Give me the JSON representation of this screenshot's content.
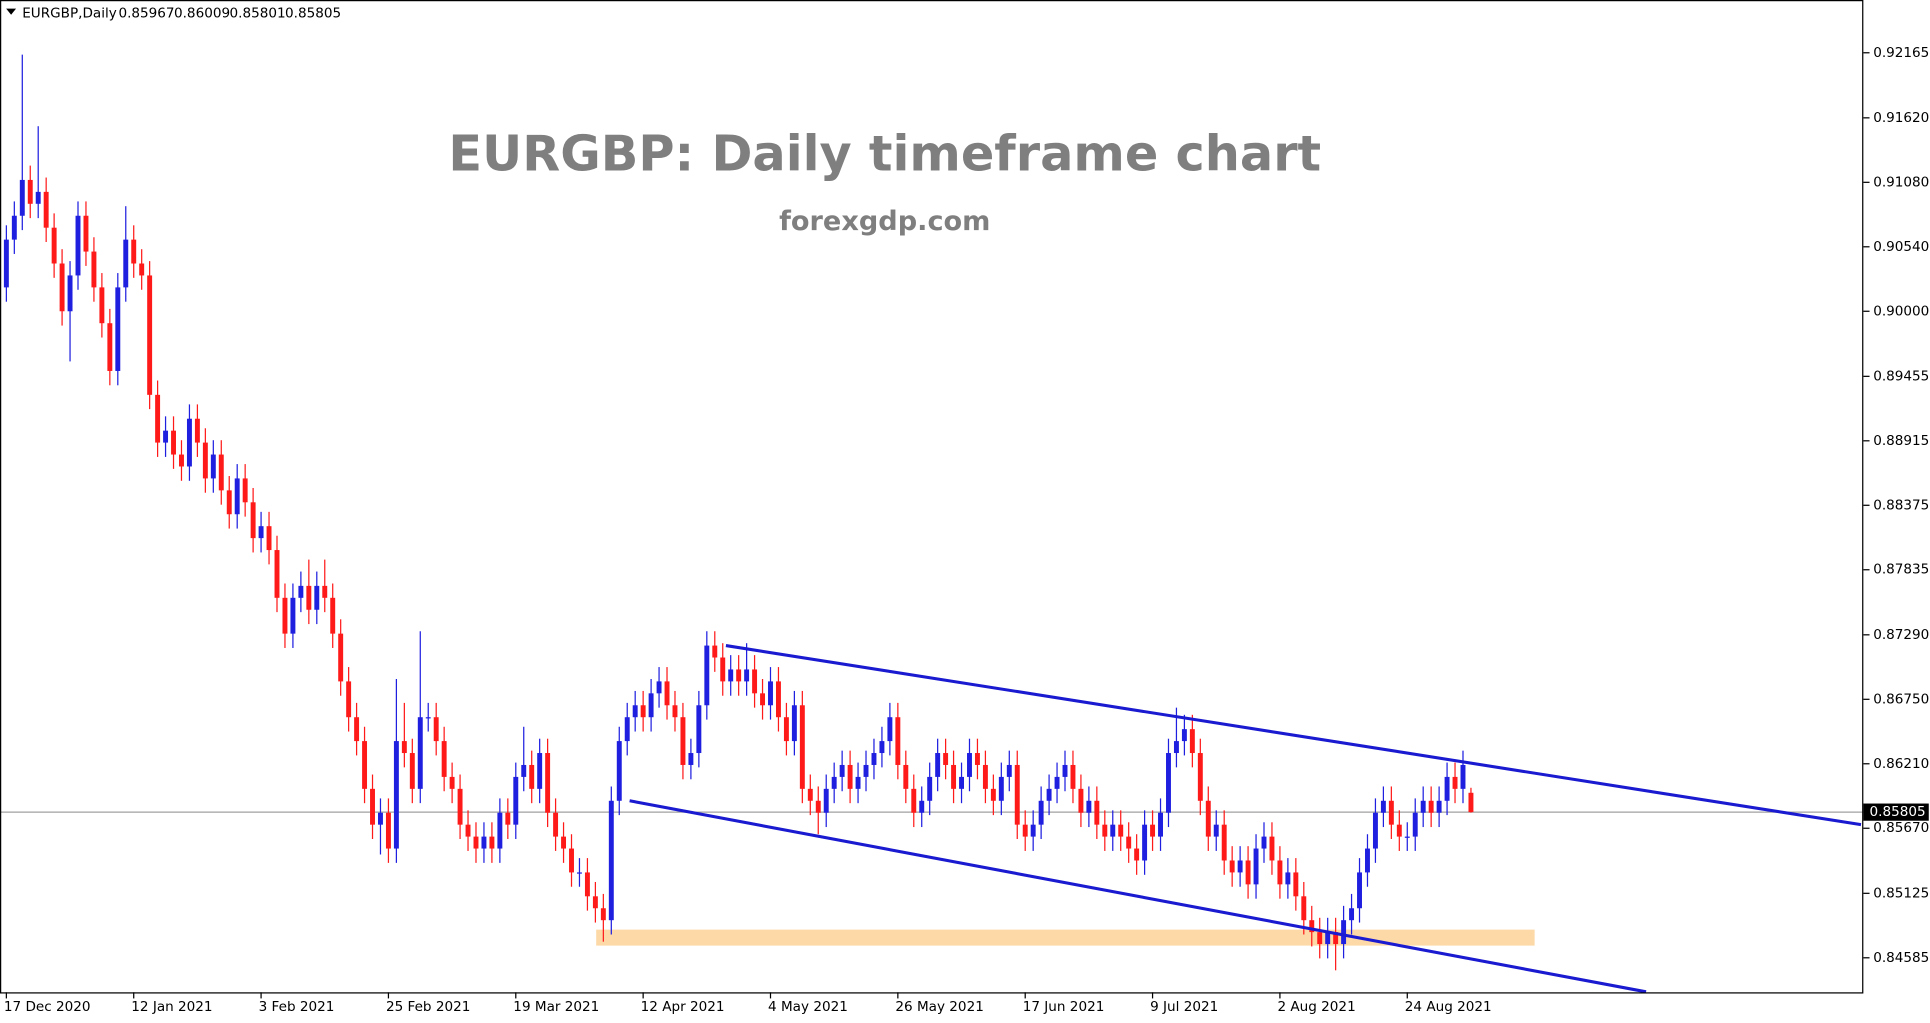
{
  "chart_data": {
    "type": "candlestick",
    "title": "EURGBP: Daily timeframe chart",
    "subtitle": "forexgdp.com",
    "symbol": "EURGBP,Daily",
    "up_color": "#1f1fe0",
    "down_color": "#ff1a1a",
    "xlim": [
      -0.8,
      233.3
    ],
    "xticks": [
      {
        "value": 0,
        "label": "17 Dec 2020"
      },
      {
        "value": 16,
        "label": "12 Jan 2021"
      },
      {
        "value": 32,
        "label": "3 Feb 2021"
      },
      {
        "value": 48,
        "label": "25 Feb 2021"
      },
      {
        "value": 64,
        "label": "19 Mar 2021"
      },
      {
        "value": 80,
        "label": "12 Apr 2021"
      },
      {
        "value": 96,
        "label": "4 May 2021"
      },
      {
        "value": 112,
        "label": "26 May 2021"
      },
      {
        "value": 128,
        "label": "17 Jun 2021"
      },
      {
        "value": 144,
        "label": "9 Jul 2021"
      },
      {
        "value": 160,
        "label": "2 Aug 2021"
      },
      {
        "value": 176,
        "label": "24 Aug 2021"
      }
    ],
    "ylim": [
      0.84296,
      0.92607
    ],
    "yticks": [
      0.92165,
      {
        "value": 0.9162,
        "label": "0.91620"
      },
      {
        "value": 0.9108,
        "label": "0.91080"
      },
      {
        "value": 0.9054,
        "label": "0.90540"
      },
      {
        "value": 0.9,
        "label": "0.90000"
      },
      0.89455,
      0.88915,
      0.88375,
      0.87835,
      {
        "value": 0.8729,
        "label": "0.87290"
      },
      {
        "value": 0.8675,
        "label": "0.86750"
      },
      {
        "value": 0.8621,
        "label": "0.86210"
      },
      {
        "value": 0.8567,
        "label": "0.85670"
      },
      0.85125,
      0.84585
    ],
    "open": [
      0.902,
      0.906,
      0.908,
      0.911,
      0.909,
      0.91,
      0.907,
      0.904,
      0.9,
      0.903,
      0.908,
      0.905,
      0.902,
      0.899,
      0.895,
      0.902,
      0.906,
      0.904,
      0.903,
      0.893,
      0.889,
      0.89,
      0.888,
      0.887,
      0.891,
      0.889,
      0.886,
      0.888,
      0.885,
      0.883,
      0.886,
      0.884,
      0.881,
      0.882,
      0.88,
      0.876,
      0.873,
      0.876,
      0.877,
      0.875,
      0.877,
      0.876,
      0.873,
      0.869,
      0.866,
      0.864,
      0.86,
      0.857,
      0.858,
      0.855,
      0.864,
      0.863,
      0.86,
      0.866,
      0.866,
      0.864,
      0.861,
      0.86,
      0.857,
      0.856,
      0.855,
      0.856,
      0.855,
      0.858,
      0.857,
      0.861,
      0.862,
      0.86,
      0.863,
      0.858,
      0.856,
      0.855,
      0.853,
      0.853,
      0.851,
      0.85,
      0.849,
      0.859,
      0.864,
      0.866,
      0.867,
      0.866,
      0.868,
      0.869,
      0.867,
      0.866,
      0.862,
      0.863,
      0.867,
      0.872,
      0.871,
      0.869,
      0.87,
      0.869,
      0.87,
      0.868,
      0.867,
      0.869,
      0.866,
      0.864,
      0.867,
      0.86,
      0.859,
      0.858,
      0.86,
      0.861,
      0.862,
      0.86,
      0.861,
      0.862,
      0.863,
      0.864,
      0.866,
      0.862,
      0.86,
      0.858,
      0.859,
      0.861,
      0.863,
      0.862,
      0.86,
      0.861,
      0.863,
      0.862,
      0.86,
      0.859,
      0.861,
      0.862,
      0.857,
      0.856,
      0.857,
      0.859,
      0.86,
      0.861,
      0.862,
      0.86,
      0.858,
      0.859,
      0.857,
      0.856,
      0.857,
      0.856,
      0.855,
      0.854,
      0.857,
      0.856,
      0.858,
      0.863,
      0.864,
      0.865,
      0.863,
      0.859,
      0.856,
      0.857,
      0.854,
      0.853,
      0.854,
      0.852,
      0.855,
      0.856,
      0.854,
      0.852,
      0.853,
      0.851,
      0.849,
      0.848,
      0.847,
      0.848,
      0.847,
      0.849,
      0.85,
      0.853,
      0.855,
      0.858,
      0.859,
      0.857,
      0.856,
      0.856,
      0.858,
      0.859,
      0.858,
      0.859,
      0.861,
      0.86,
      0.85967
    ],
    "high": [
      0.9072,
      0.9092,
      0.9215,
      0.9122,
      0.9155,
      0.9112,
      0.9082,
      0.9052,
      0.9042,
      0.9092,
      0.9092,
      0.9062,
      0.9032,
      0.9002,
      0.9032,
      0.9088,
      0.9072,
      0.9052,
      0.9042,
      0.8942,
      0.8912,
      0.8912,
      0.8892,
      0.8922,
      0.8922,
      0.8902,
      0.8892,
      0.8892,
      0.8862,
      0.8872,
      0.8872,
      0.8852,
      0.8832,
      0.8832,
      0.8812,
      0.8772,
      0.8772,
      0.8782,
      0.8792,
      0.8782,
      0.8792,
      0.8772,
      0.8742,
      0.8702,
      0.8672,
      0.8652,
      0.8612,
      0.8592,
      0.8592,
      0.8692,
      0.8672,
      0.8642,
      0.8732,
      0.8672,
      0.8672,
      0.8652,
      0.8622,
      0.8612,
      0.8582,
      0.8572,
      0.8572,
      0.8572,
      0.8592,
      0.8592,
      0.8622,
      0.8652,
      0.8632,
      0.8642,
      0.8642,
      0.8592,
      0.8572,
      0.8562,
      0.8542,
      0.8542,
      0.8522,
      0.8512,
      0.8602,
      0.8652,
      0.8672,
      0.8682,
      0.8682,
      0.8692,
      0.8702,
      0.8702,
      0.8682,
      0.8672,
      0.8642,
      0.8682,
      0.8732,
      0.8732,
      0.8722,
      0.8712,
      0.8712,
      0.8722,
      0.8712,
      0.8692,
      0.8702,
      0.8702,
      0.8672,
      0.8682,
      0.8682,
      0.8612,
      0.8602,
      0.8612,
      0.8622,
      0.8632,
      0.8632,
      0.8622,
      0.8632,
      0.8642,
      0.8652,
      0.8672,
      0.8672,
      0.8632,
      0.8612,
      0.8602,
      0.8622,
      0.8642,
      0.8642,
      0.8632,
      0.8622,
      0.8642,
      0.8642,
      0.8632,
      0.8612,
      0.8622,
      0.8632,
      0.8632,
      0.8582,
      0.8582,
      0.8602,
      0.8612,
      0.8622,
      0.8632,
      0.8632,
      0.8612,
      0.8602,
      0.8602,
      0.8582,
      0.8582,
      0.8582,
      0.8572,
      0.8562,
      0.8582,
      0.8582,
      0.8592,
      0.8642,
      0.8668,
      0.8662,
      0.8662,
      0.8642,
      0.8602,
      0.8582,
      0.8582,
      0.8552,
      0.8552,
      0.8552,
      0.8562,
      0.8572,
      0.8572,
      0.8552,
      0.8542,
      0.8542,
      0.8522,
      0.8502,
      0.8492,
      0.8492,
      0.8492,
      0.8502,
      0.8512,
      0.8542,
      0.8562,
      0.8592,
      0.8602,
      0.8602,
      0.8582,
      0.8572,
      0.8592,
      0.8602,
      0.8602,
      0.8602,
      0.8622,
      0.8622,
      0.8632,
      0.86009
    ],
    "low": [
      0.9008,
      0.9048,
      0.9068,
      0.9078,
      0.9078,
      0.9058,
      0.9028,
      0.8988,
      0.8958,
      0.9018,
      0.9038,
      0.9008,
      0.8978,
      0.8938,
      0.8938,
      0.9008,
      0.9028,
      0.9018,
      0.8918,
      0.8878,
      0.8878,
      0.8868,
      0.8858,
      0.8858,
      0.8878,
      0.8848,
      0.8848,
      0.8838,
      0.8818,
      0.8818,
      0.8828,
      0.8798,
      0.8798,
      0.8788,
      0.8748,
      0.8718,
      0.8718,
      0.8748,
      0.8738,
      0.8738,
      0.8748,
      0.8718,
      0.8678,
      0.8648,
      0.8628,
      0.8588,
      0.8558,
      0.8545,
      0.8538,
      0.8538,
      0.8618,
      0.8588,
      0.8588,
      0.8648,
      0.8628,
      0.8598,
      0.8588,
      0.8558,
      0.8548,
      0.8538,
      0.8538,
      0.8538,
      0.8538,
      0.8558,
      0.8558,
      0.8598,
      0.8588,
      0.8588,
      0.8568,
      0.8548,
      0.8538,
      0.8518,
      0.8518,
      0.8498,
      0.8488,
      0.8472,
      0.8478,
      0.8578,
      0.8628,
      0.8648,
      0.8648,
      0.8648,
      0.8668,
      0.8658,
      0.8648,
      0.8608,
      0.8608,
      0.8618,
      0.8658,
      0.8698,
      0.8678,
      0.8678,
      0.8678,
      0.8678,
      0.8668,
      0.8658,
      0.8658,
      0.8648,
      0.8628,
      0.8628,
      0.8588,
      0.8578,
      0.8562,
      0.8568,
      0.8588,
      0.8598,
      0.8588,
      0.8588,
      0.8598,
      0.8608,
      0.8618,
      0.8628,
      0.8608,
      0.8588,
      0.8568,
      0.8568,
      0.8578,
      0.8598,
      0.8608,
      0.8588,
      0.8588,
      0.8598,
      0.8608,
      0.8588,
      0.8578,
      0.8578,
      0.8598,
      0.8558,
      0.8548,
      0.8548,
      0.8558,
      0.8578,
      0.8588,
      0.8598,
      0.8588,
      0.8568,
      0.8568,
      0.8558,
      0.8548,
      0.8548,
      0.8548,
      0.8538,
      0.8528,
      0.8528,
      0.8548,
      0.8548,
      0.8568,
      0.8618,
      0.8628,
      0.8618,
      0.8578,
      0.8548,
      0.8548,
      0.8528,
      0.8518,
      0.8518,
      0.8508,
      0.8508,
      0.8538,
      0.8528,
      0.8508,
      0.8508,
      0.8498,
      0.8478,
      0.8468,
      0.8458,
      0.8458,
      0.8448,
      0.8458,
      0.8478,
      0.8488,
      0.8518,
      0.8538,
      0.8568,
      0.8558,
      0.8548,
      0.8548,
      0.8548,
      0.8568,
      0.8568,
      0.8568,
      0.8578,
      0.8588,
      0.8588,
      0.85801
    ],
    "close": [
      0.906,
      0.908,
      0.911,
      0.909,
      0.91,
      0.907,
      0.904,
      0.9,
      0.903,
      0.908,
      0.905,
      0.902,
      0.899,
      0.895,
      0.902,
      0.906,
      0.904,
      0.903,
      0.893,
      0.889,
      0.89,
      0.888,
      0.887,
      0.891,
      0.889,
      0.886,
      0.888,
      0.885,
      0.883,
      0.886,
      0.884,
      0.881,
      0.882,
      0.88,
      0.876,
      0.873,
      0.876,
      0.877,
      0.875,
      0.877,
      0.876,
      0.873,
      0.869,
      0.866,
      0.864,
      0.86,
      0.857,
      0.858,
      0.855,
      0.864,
      0.863,
      0.86,
      0.866,
      0.866,
      0.864,
      0.861,
      0.86,
      0.857,
      0.856,
      0.855,
      0.856,
      0.855,
      0.858,
      0.857,
      0.861,
      0.862,
      0.86,
      0.863,
      0.858,
      0.856,
      0.855,
      0.853,
      0.853,
      0.851,
      0.85,
      0.849,
      0.859,
      0.864,
      0.866,
      0.867,
      0.866,
      0.868,
      0.869,
      0.867,
      0.866,
      0.862,
      0.863,
      0.867,
      0.872,
      0.871,
      0.869,
      0.87,
      0.869,
      0.87,
      0.868,
      0.867,
      0.869,
      0.866,
      0.864,
      0.867,
      0.86,
      0.859,
      0.858,
      0.86,
      0.861,
      0.862,
      0.86,
      0.861,
      0.862,
      0.863,
      0.864,
      0.866,
      0.862,
      0.86,
      0.858,
      0.859,
      0.861,
      0.863,
      0.862,
      0.86,
      0.861,
      0.863,
      0.862,
      0.86,
      0.859,
      0.861,
      0.862,
      0.857,
      0.856,
      0.857,
      0.859,
      0.86,
      0.861,
      0.862,
      0.86,
      0.858,
      0.859,
      0.857,
      0.856,
      0.857,
      0.856,
      0.855,
      0.854,
      0.857,
      0.856,
      0.858,
      0.863,
      0.864,
      0.865,
      0.863,
      0.859,
      0.856,
      0.857,
      0.854,
      0.853,
      0.854,
      0.852,
      0.855,
      0.856,
      0.854,
      0.852,
      0.853,
      0.851,
      0.849,
      0.848,
      0.847,
      0.848,
      0.847,
      0.849,
      0.85,
      0.853,
      0.855,
      0.858,
      0.859,
      0.857,
      0.856,
      0.856,
      0.858,
      0.859,
      0.858,
      0.859,
      0.861,
      0.86,
      0.862,
      0.85805
    ],
    "channel": [
      {
        "color": "#1a1ad0",
        "x": [
          90.4,
          233
        ],
        "y": [
          0.872,
          0.857
        ]
      },
      {
        "color": "#1a1ad0",
        "x": [
          78.3,
          206
        ],
        "y": [
          0.859,
          0.843
        ]
      }
    ],
    "zone": {
      "color": "#fdd9a8",
      "x": [
        74.1,
        192
      ],
      "y": [
        0.84687,
        0.84821
      ]
    }
  }
}
